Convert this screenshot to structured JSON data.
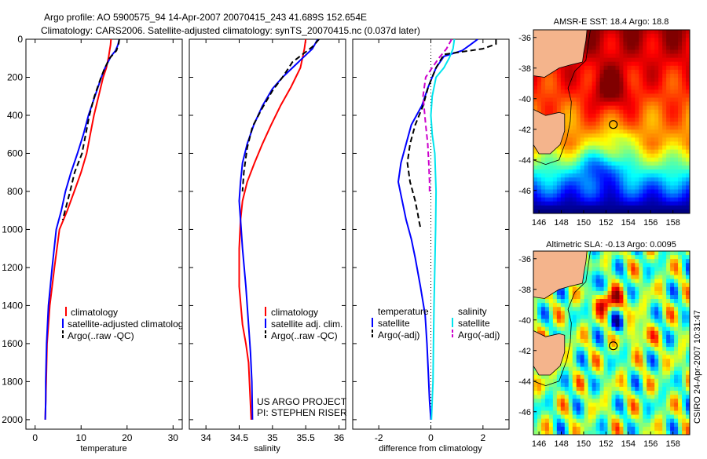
{
  "header": {
    "line1": "Argo profile: AO 5900575_94 14-Apr-2007 20070415_243 41.689S 152.654E",
    "line2": "Climatology: CARS2006. Satellite-adjusted climatology: synTS_20070415.nc (0.037d later)"
  },
  "colors": {
    "climatology": "#ff0000",
    "satellite": "#0000ff",
    "argo": "#000000",
    "sal_satellite": "#00e5ee",
    "sal_argo": "#cc00cc",
    "land": "#f4b48c"
  },
  "credit": {
    "line1": "US ARGO PROJECT",
    "line2": "PI: STEPHEN RISER"
  },
  "side_credit": "CSIRO 24-Apr-2007 10:31:47",
  "chart_data": [
    {
      "type": "line",
      "id": "temperature",
      "xlabel": "temperature",
      "ylabel": "",
      "xlim": [
        -2,
        32
      ],
      "ylim": [
        2050,
        0
      ],
      "xticks": [
        0,
        10,
        20,
        30
      ],
      "yticks": [
        0,
        200,
        400,
        600,
        800,
        1000,
        1200,
        1400,
        1600,
        1800,
        2000
      ],
      "legend": [
        "climatology",
        "satellite-adjusted climatology",
        "Argo(..raw -QC)"
      ],
      "series": [
        {
          "name": "climatology",
          "color": "red",
          "dash": false,
          "x": [
            16.5,
            16.4,
            16.2,
            16.0,
            15.5,
            14.8,
            13.8,
            12.8,
            12.0,
            11.2,
            10.0,
            8.5,
            7.0,
            5.3,
            4.2,
            3.2,
            2.6,
            2.4,
            2.2
          ],
          "y": [
            0,
            30,
            60,
            90,
            150,
            200,
            300,
            400,
            500,
            600,
            700,
            800,
            900,
            1000,
            1200,
            1400,
            1600,
            1800,
            2000
          ]
        },
        {
          "name": "satellite",
          "color": "blue",
          "dash": false,
          "x": [
            18.3,
            18.0,
            17.5,
            16.5,
            15.2,
            14.4,
            13.0,
            11.6,
            10.5,
            9.2,
            7.8,
            6.6,
            5.7,
            4.6,
            3.7,
            2.9,
            2.5,
            2.3,
            2.3,
            2.2
          ],
          "y": [
            0,
            30,
            60,
            90,
            150,
            200,
            300,
            400,
            500,
            600,
            700,
            800,
            900,
            1000,
            1200,
            1400,
            1600,
            1800,
            1900,
            2000
          ]
        },
        {
          "name": "argo",
          "color": "black",
          "dash": true,
          "x": [
            18.3,
            18.2,
            17.7,
            16.2,
            15.0,
            14.2,
            12.9,
            11.8,
            11.0,
            10.2,
            8.6,
            7.6,
            6.0
          ],
          "y": [
            0,
            20,
            60,
            100,
            160,
            210,
            300,
            400,
            500,
            600,
            700,
            800,
            950
          ]
        }
      ]
    },
    {
      "type": "line",
      "id": "salinity",
      "xlabel": "salinity",
      "ylabel": "",
      "xlim": [
        33.75,
        36.1
      ],
      "ylim": [
        2050,
        0
      ],
      "xticks": [
        34,
        34.5,
        35,
        35.5,
        36
      ],
      "xtick_labels": [
        "34",
        "34.5",
        "35",
        "35.5",
        "36"
      ],
      "legend": [
        "climatology",
        "satellite adj. clim.",
        "Argo(..raw -QC)"
      ],
      "series": [
        {
          "name": "climatology",
          "color": "red",
          "dash": false,
          "x": [
            35.5,
            35.48,
            35.45,
            35.42,
            35.35,
            35.28,
            35.12,
            34.98,
            34.85,
            34.73,
            34.62,
            34.55,
            34.52,
            34.5,
            34.5,
            34.55,
            34.6,
            34.64,
            34.66,
            34.68
          ],
          "y": [
            0,
            50,
            100,
            150,
            200,
            250,
            350,
            450,
            550,
            650,
            750,
            850,
            950,
            1100,
            1300,
            1500,
            1600,
            1700,
            1850,
            2000
          ]
        },
        {
          "name": "satellite",
          "color": "blue",
          "dash": false,
          "x": [
            35.68,
            35.6,
            35.45,
            35.3,
            35.15,
            35.0,
            34.85,
            34.72,
            34.62,
            34.55,
            34.52,
            34.5,
            34.52,
            34.55,
            34.6,
            34.64,
            34.67,
            34.69,
            34.7
          ],
          "y": [
            0,
            50,
            100,
            150,
            200,
            260,
            350,
            450,
            550,
            650,
            750,
            850,
            950,
            1100,
            1300,
            1500,
            1650,
            1800,
            2000
          ]
        },
        {
          "name": "argo",
          "color": "black",
          "dash": true,
          "x": [
            35.7,
            35.6,
            35.3,
            35.15,
            35.0,
            34.85,
            34.7,
            34.62,
            34.57,
            34.55
          ],
          "y": [
            0,
            40,
            120,
            200,
            270,
            360,
            460,
            570,
            700,
            800
          ]
        }
      ]
    },
    {
      "type": "line",
      "id": "difference",
      "xlabel": "difference from climatology",
      "ylabel": "",
      "xlim": [
        -3,
        3
      ],
      "ylim": [
        2050,
        0
      ],
      "xticks": [
        -2,
        0,
        2
      ],
      "legend_left": [
        "temperature",
        "satellite",
        "Argo(-adj)"
      ],
      "legend_right": [
        "salinity",
        "satellite",
        "Argo(-adj)"
      ],
      "series": [
        {
          "name": "temperature satellite",
          "color": "blue",
          "dash": false,
          "x": [
            1.8,
            1.5,
            1.2,
            0.5,
            0.2,
            -0.1,
            -0.35,
            -0.75,
            -0.95,
            -1.15,
            -1.25,
            -1.1,
            -0.95,
            -0.75,
            -0.6,
            -0.4,
            -0.22,
            -0.15,
            -0.1,
            -0.05,
            0.0
          ],
          "y": [
            0,
            30,
            60,
            90,
            150,
            250,
            350,
            450,
            550,
            650,
            750,
            850,
            950,
            1050,
            1150,
            1300,
            1450,
            1600,
            1750,
            1900,
            2000
          ]
        },
        {
          "name": "temperature argo",
          "color": "black",
          "dash": true,
          "x": [
            2.5,
            2.5,
            2.0,
            0.5,
            0.2,
            -0.1,
            -0.3,
            -0.6,
            -0.8,
            -0.9,
            -0.8,
            -0.6,
            -0.5,
            -0.45,
            -0.4
          ],
          "y": [
            0,
            25,
            50,
            80,
            150,
            250,
            350,
            450,
            550,
            650,
            750,
            850,
            920,
            960,
            990
          ]
        },
        {
          "name": "salinity satellite",
          "color": "cyan",
          "dash": false,
          "x": [
            0.9,
            0.85,
            0.7,
            0.5,
            0.2,
            0.05,
            0.0,
            0.05,
            0.15,
            0.2,
            0.18,
            0.15,
            0.12,
            0.1,
            0.08,
            0.05,
            0.02
          ],
          "y": [
            0,
            50,
            100,
            150,
            200,
            300,
            400,
            500,
            600,
            800,
            1000,
            1200,
            1400,
            1600,
            1800,
            1900,
            2000
          ]
        },
        {
          "name": "salinity argo",
          "color": "magenta",
          "dash": true,
          "x": [
            0.8,
            0.6,
            0.3,
            -0.2,
            -0.3,
            -0.2,
            -0.12,
            -0.08,
            -0.05,
            -0.05
          ],
          "y": [
            0,
            50,
            100,
            200,
            300,
            450,
            550,
            650,
            750,
            800
          ]
        }
      ]
    },
    {
      "type": "heatmap",
      "id": "sst_map",
      "title": "AMSR-E SST: 18.4 Argo: 18.8",
      "xlim": [
        145.5,
        159.5
      ],
      "ylim": [
        -47.5,
        -35.5
      ],
      "xticks": [
        146,
        148,
        150,
        152,
        154,
        156,
        158
      ],
      "yticks": [
        -36,
        -38,
        -40,
        -42,
        -44,
        -46
      ],
      "marker": {
        "lon": 152.654,
        "lat": -41.689
      },
      "value_range": [
        10,
        20
      ]
    },
    {
      "type": "heatmap",
      "id": "sla_map",
      "title": "Altimetric SLA: -0.13 Argo: 0.0095",
      "xlim": [
        145.5,
        159.5
      ],
      "ylim": [
        -47.5,
        -35.5
      ],
      "xticks": [
        146,
        148,
        150,
        152,
        154,
        156,
        158
      ],
      "yticks": [
        -36,
        -38,
        -40,
        -42,
        -44,
        -46
      ],
      "marker": {
        "lon": 152.654,
        "lat": -41.689
      },
      "value_range": [
        -0.4,
        0.4
      ]
    }
  ]
}
